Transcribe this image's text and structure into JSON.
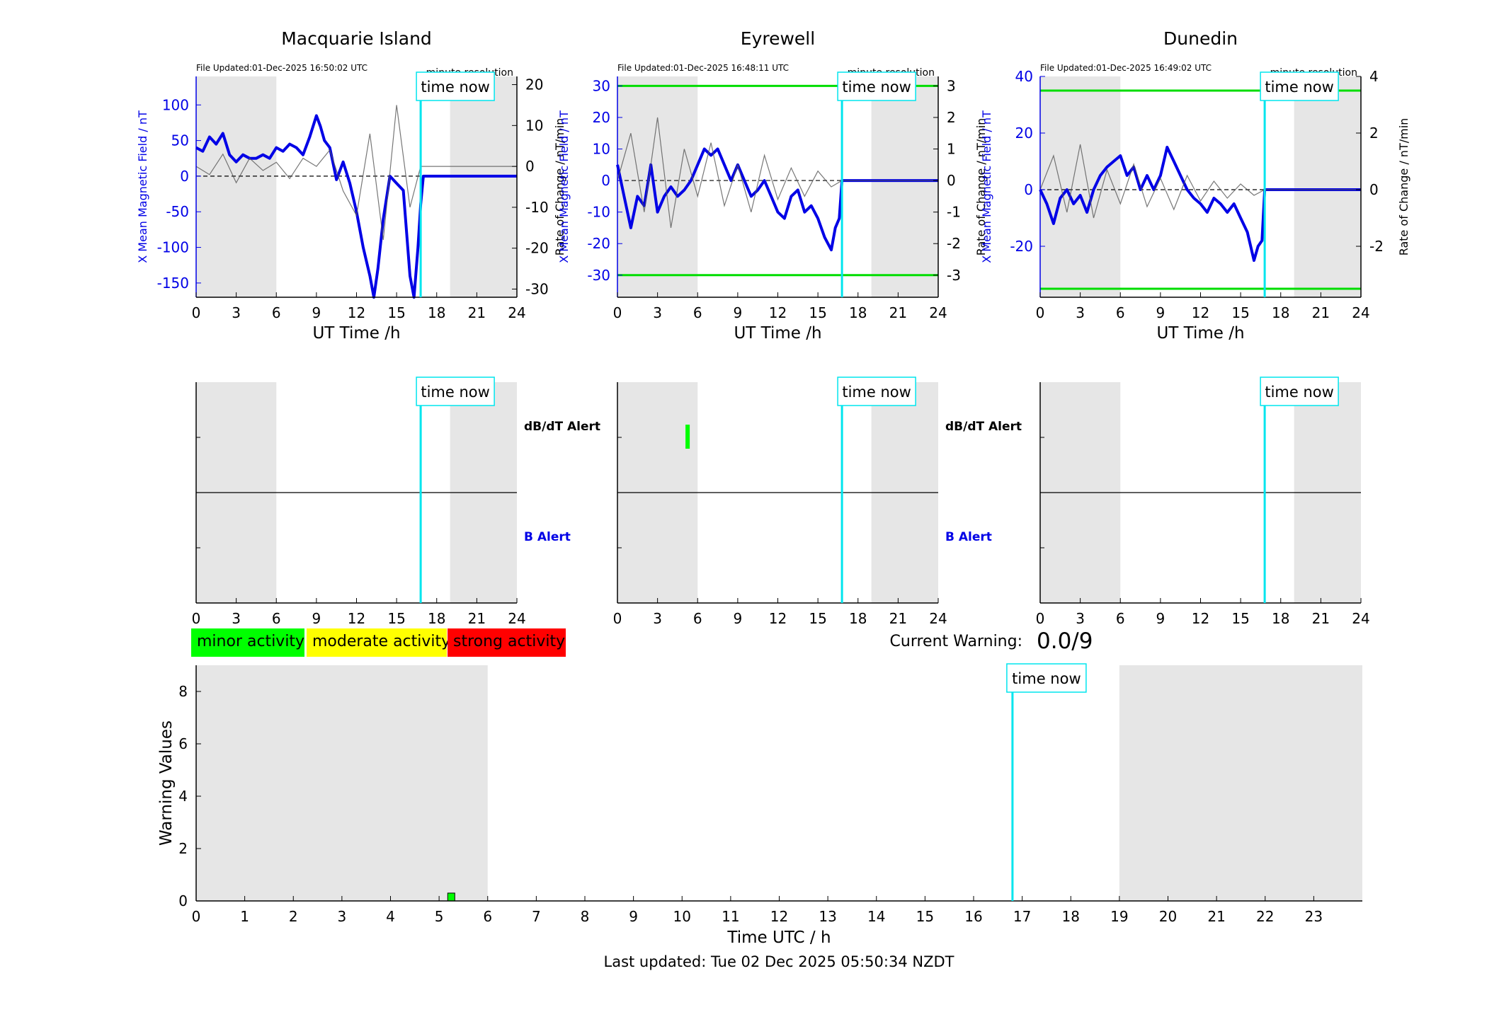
{
  "panels": [
    {
      "title": "Macquarie Island",
      "file_updated": "File Updated:01-Dec-2025 16:50:02 UTC",
      "resolution": "minute resolution",
      "ylabel_left": "X Mean Magnetic Field / nT",
      "ylabel_right": "Rate of Change / nT/min",
      "left_ticks": [
        "100",
        "50",
        "0",
        "-50",
        "-100",
        "-150"
      ],
      "right_ticks": [
        "20",
        "10",
        "0",
        "-10",
        "-20",
        "-30"
      ],
      "xlabel": "UT Time /h"
    },
    {
      "title": "Eyrewell",
      "file_updated": "File Updated:01-Dec-2025 16:48:11 UTC",
      "resolution": "minute resolution",
      "ylabel_left": "X Mean Magnetic Field / nT",
      "ylabel_right": "Rate of Change / nT/min",
      "left_ticks": [
        "30",
        "20",
        "10",
        "0",
        "-10",
        "-20",
        "-30"
      ],
      "right_ticks": [
        "3",
        "2",
        "1",
        "0",
        "-1",
        "-2",
        "-3"
      ],
      "xlabel": "UT Time /h"
    },
    {
      "title": "Dunedin",
      "file_updated": "File Updated:01-Dec-2025 16:49:02 UTC",
      "resolution": "minute resolution",
      "ylabel_left": "X Mean Magnetic Field / nT",
      "ylabel_right": "Rate of Change / nT/min",
      "left_ticks": [
        "40",
        "20",
        "0",
        "-20"
      ],
      "right_ticks": [
        "4",
        "2",
        "0",
        "-2"
      ],
      "xlabel": "UT Time /h"
    }
  ],
  "hour_ticks": [
    "0",
    "3",
    "6",
    "9",
    "12",
    "15",
    "18",
    "21",
    "24"
  ],
  "time_now_label": "time now",
  "alert_labels": {
    "dbdt": "dB/dT Alert",
    "b": "B Alert"
  },
  "legend": {
    "minor": "minor activity",
    "moderate": "moderate activity",
    "strong": "strong activity"
  },
  "current_warning_label": "Current Warning:",
  "current_warning_value": "0.0/9",
  "warning_plot": {
    "ylabel": "Warning Values",
    "xlabel": "Time UTC / h",
    "y_ticks": [
      "8",
      "6",
      "4",
      "2",
      "0"
    ],
    "x_ticks": [
      "0",
      "1",
      "2",
      "3",
      "4",
      "5",
      "6",
      "7",
      "8",
      "9",
      "10",
      "11",
      "12",
      "13",
      "14",
      "15",
      "16",
      "17",
      "18",
      "19",
      "20",
      "21",
      "22",
      "23"
    ]
  },
  "last_updated": "Last updated: Tue 02 Dec 2025 05:50:34 NZDT",
  "colors": {
    "field_line": "#0000e6",
    "rate_line": "#555555",
    "threshold_line": "#00dd00",
    "time_now": "#00e5ee",
    "night_shade": "#e6e6e6",
    "minor": "#00ff00",
    "moderate": "#ffff00",
    "strong": "#ff0000"
  },
  "chart_data": [
    {
      "type": "line",
      "title": "Macquarie Island",
      "xlabel": "UT Time /h",
      "ylabel": "X Mean Magnetic Field / nT",
      "ylabel_right": "Rate of Change / nT/min",
      "xlim": [
        0,
        24
      ],
      "ylim": [
        -170,
        140
      ],
      "ylim_right": [
        -32,
        22
      ],
      "night_shading_h": [
        [
          0,
          6
        ],
        [
          19,
          24
        ]
      ],
      "time_now_h": 16.8,
      "thresholds": [],
      "series": [
        {
          "axis": "left",
          "x": [
            0,
            0.5,
            1,
            1.5,
            2,
            2.5,
            3,
            3.5,
            4,
            4.5,
            5,
            5.5,
            6,
            6.5,
            7,
            7.5,
            8,
            8.5,
            9,
            9.3,
            9.6,
            10,
            10.5,
            11,
            11.5,
            12,
            12.5,
            13,
            13.3,
            13.6,
            14,
            14.5,
            15,
            15.5,
            16,
            16.3,
            16.6,
            16.8,
            17,
            18,
            20,
            22,
            24
          ],
          "y": [
            40,
            35,
            55,
            45,
            60,
            30,
            20,
            30,
            25,
            25,
            30,
            25,
            40,
            35,
            45,
            40,
            30,
            55,
            85,
            70,
            50,
            40,
            -5,
            20,
            -10,
            -50,
            -100,
            -140,
            -170,
            -130,
            -60,
            0,
            -10,
            -20,
            -140,
            -170,
            -100,
            -40,
            0,
            0,
            0,
            0,
            0
          ]
        },
        {
          "axis": "right",
          "x": [
            0,
            1,
            2,
            3,
            4,
            5,
            6,
            7,
            8,
            9,
            10,
            11,
            12,
            13,
            14,
            15,
            16,
            16.8,
            17,
            24
          ],
          "y": [
            0,
            -2,
            3,
            -4,
            2,
            -1,
            1,
            -3,
            2,
            0,
            4,
            -6,
            -12,
            8,
            -18,
            15,
            -10,
            0,
            0,
            0
          ]
        }
      ]
    },
    {
      "type": "line",
      "title": "Eyrewell",
      "xlabel": "UT Time /h",
      "ylabel": "X Mean Magnetic Field / nT",
      "ylabel_right": "Rate of Change / nT/min",
      "xlim": [
        0,
        24
      ],
      "ylim": [
        -37,
        33
      ],
      "ylim_right": [
        -3.7,
        3.3
      ],
      "night_shading_h": [
        [
          0,
          6
        ],
        [
          19,
          24
        ]
      ],
      "time_now_h": 16.8,
      "thresholds": [
        30,
        -30
      ],
      "series": [
        {
          "axis": "left",
          "x": [
            0,
            0.5,
            1,
            1.5,
            2,
            2.5,
            3,
            3.5,
            4,
            4.5,
            5,
            5.5,
            6,
            6.5,
            7,
            7.5,
            8,
            8.5,
            9,
            9.5,
            10,
            10.5,
            11,
            11.5,
            12,
            12.5,
            13,
            13.5,
            14,
            14.5,
            15,
            15.5,
            16,
            16.3,
            16.6,
            16.8,
            17,
            18,
            20,
            22,
            24
          ],
          "y": [
            5,
            -5,
            -15,
            -5,
            -8,
            5,
            -10,
            -5,
            -2,
            -5,
            -3,
            0,
            5,
            10,
            8,
            10,
            5,
            0,
            5,
            0,
            -5,
            -3,
            0,
            -5,
            -10,
            -12,
            -5,
            -3,
            -10,
            -8,
            -12,
            -18,
            -22,
            -15,
            -12,
            0,
            0,
            0,
            0,
            0,
            0
          ]
        },
        {
          "axis": "right",
          "x": [
            0,
            1,
            2,
            3,
            4,
            5,
            6,
            7,
            8,
            9,
            10,
            11,
            12,
            13,
            14,
            15,
            16,
            16.8,
            17,
            24
          ],
          "y": [
            0,
            1.5,
            -1,
            2,
            -1.5,
            1,
            -0.5,
            1.2,
            -0.8,
            0.5,
            -1,
            0.8,
            -0.6,
            0.4,
            -0.5,
            0.3,
            -0.2,
            0,
            0,
            0
          ]
        }
      ]
    },
    {
      "type": "line",
      "title": "Dunedin",
      "xlabel": "UT Time /h",
      "ylabel": "X Mean Magnetic Field / nT",
      "ylabel_right": "Rate of Change / nT/min",
      "xlim": [
        0,
        24
      ],
      "ylim": [
        -38,
        40
      ],
      "ylim_right": [
        -3.8,
        4
      ],
      "night_shading_h": [
        [
          0,
          6
        ],
        [
          19,
          24
        ]
      ],
      "time_now_h": 16.8,
      "thresholds": [
        35,
        -35
      ],
      "series": [
        {
          "axis": "left",
          "x": [
            0,
            0.5,
            1,
            1.5,
            2,
            2.5,
            3,
            3.5,
            4,
            4.5,
            5,
            5.5,
            6,
            6.5,
            7,
            7.5,
            8,
            8.5,
            9,
            9.5,
            10,
            10.5,
            11,
            11.5,
            12,
            12.5,
            13,
            13.5,
            14,
            14.5,
            15,
            15.5,
            16,
            16.3,
            16.6,
            16.8,
            17,
            18,
            20,
            22,
            24
          ],
          "y": [
            0,
            -5,
            -12,
            -3,
            0,
            -5,
            -2,
            -8,
            0,
            5,
            8,
            10,
            12,
            5,
            8,
            0,
            5,
            0,
            5,
            15,
            10,
            5,
            0,
            -3,
            -5,
            -8,
            -3,
            -5,
            -8,
            -5,
            -10,
            -15,
            -25,
            -20,
            -18,
            0,
            0,
            0,
            0,
            0,
            0
          ]
        },
        {
          "axis": "right",
          "x": [
            0,
            1,
            2,
            3,
            4,
            5,
            6,
            7,
            8,
            9,
            10,
            11,
            12,
            13,
            14,
            15,
            16,
            16.8,
            17,
            24
          ],
          "y": [
            0,
            1.2,
            -0.8,
            1.6,
            -1,
            0.7,
            -0.5,
            0.9,
            -0.6,
            0.4,
            -0.7,
            0.5,
            -0.4,
            0.3,
            -0.3,
            0.2,
            -0.2,
            0,
            0,
            0
          ]
        }
      ]
    },
    {
      "type": "bar",
      "title": "",
      "xlabel": "Time UTC / h",
      "ylabel": "Warning Values",
      "xlim": [
        0,
        24
      ],
      "ylim": [
        0,
        9
      ],
      "night_shading_h": [
        [
          0,
          6
        ],
        [
          19,
          24
        ]
      ],
      "time_now_h": 16.8,
      "bars": [
        {
          "x": 5.25,
          "value": 0.3,
          "level": "minor"
        }
      ]
    }
  ]
}
